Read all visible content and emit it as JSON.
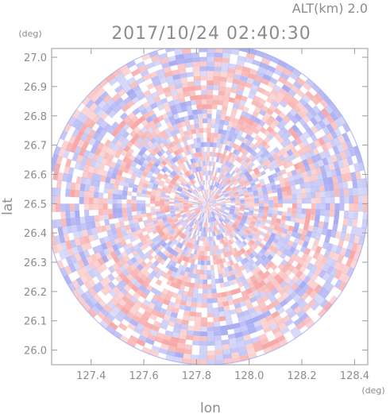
{
  "chart_data": {
    "type": "heatmap",
    "title": "2017/10/24 02:40:30",
    "subtitle": "ALT(km) 2.0",
    "xlabel": "lon",
    "ylabel": "lat",
    "xunit": "(deg)",
    "yunit": "(deg)",
    "xlim": [
      127.25,
      128.45
    ],
    "ylim": [
      25.95,
      27.03
    ],
    "xticks": [
      127.4,
      127.6,
      127.8,
      128.0,
      128.2,
      128.4
    ],
    "xtick_labels": [
      "127.4",
      "127.6",
      "127.8",
      "128.0",
      "128.2",
      "128.4"
    ],
    "yticks": [
      26.0,
      26.1,
      26.2,
      26.3,
      26.4,
      26.5,
      26.6,
      26.7,
      26.8,
      26.9,
      27.0
    ],
    "ytick_labels": [
      "26.0",
      "26.1",
      "26.2",
      "26.3",
      "26.4",
      "26.5",
      "26.6",
      "26.7",
      "26.8",
      "26.9",
      "27.0"
    ],
    "center": {
      "lon": 127.84,
      "lat": 26.5
    },
    "radius_deg_lat": 0.55,
    "grid": false,
    "colormap": {
      "positive": "#f7a8a8",
      "negative": "#a9acf2",
      "zero": "#ffffff"
    }
  }
}
